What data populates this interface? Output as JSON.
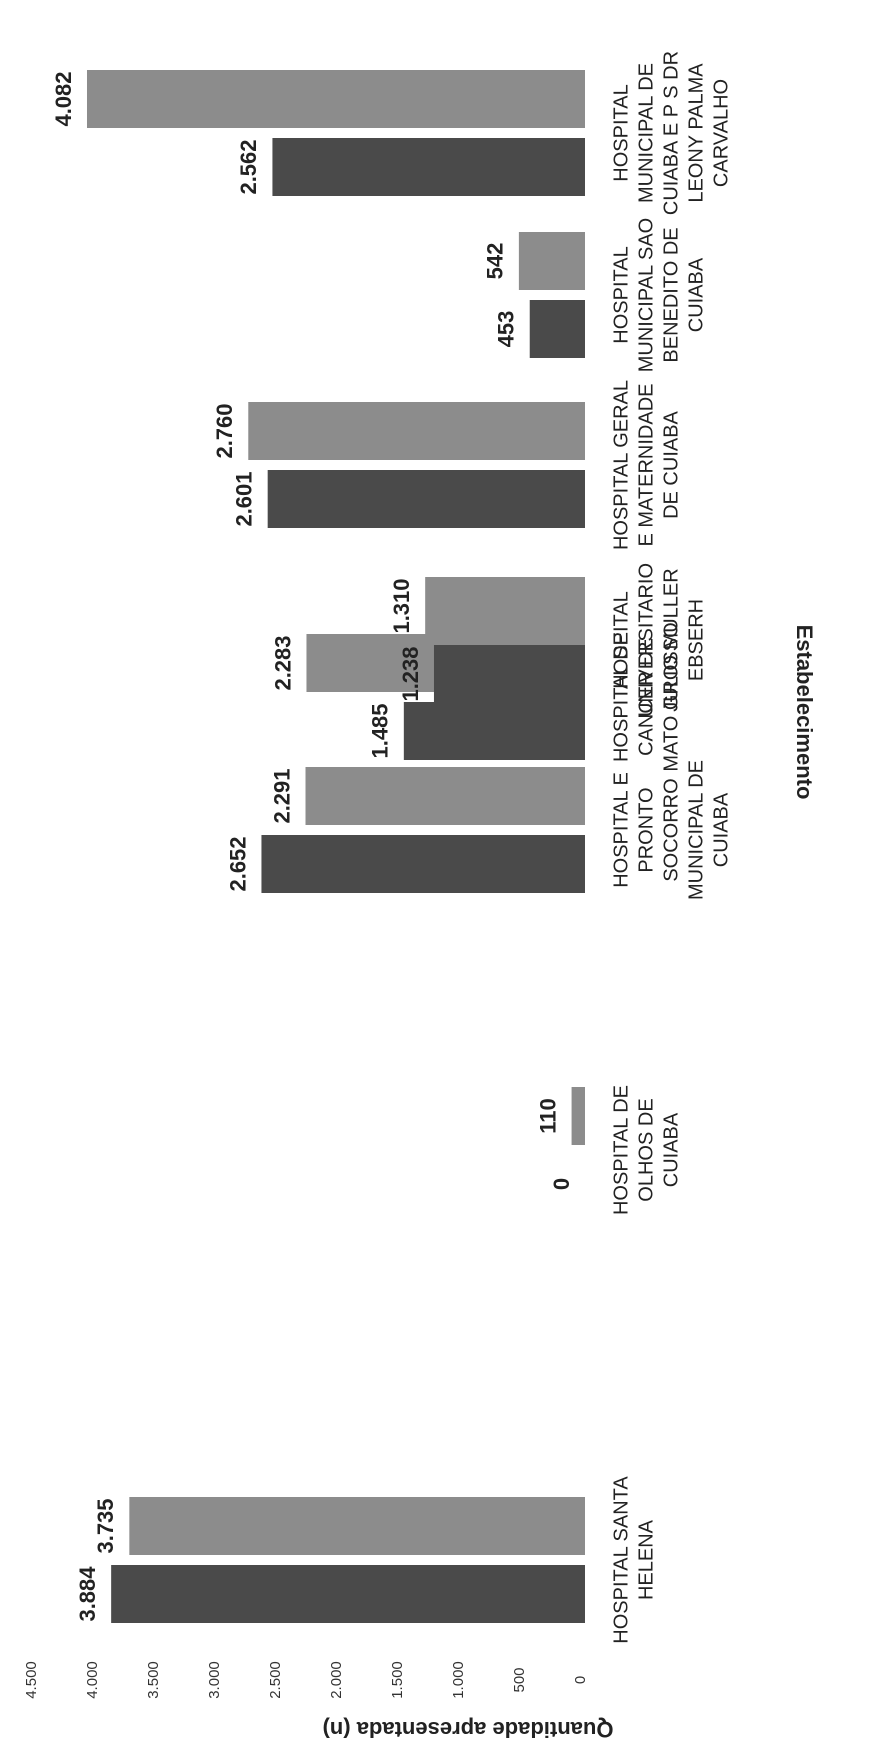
{
  "chart_data": {
    "type": "bar",
    "orientation": "horizontal",
    "rotated": true,
    "categories": [
      [
        "HOSPITAL SANTA",
        "HELENA"
      ],
      [
        "HOSPITAL DE",
        "OLHOS DE",
        "CUIABA"
      ],
      [
        "HOSPITAL E",
        "PRONTO",
        "SOCORRO",
        "MUNICIPAL DE",
        "CUIABA"
      ],
      [
        "HOSPITAL DE",
        "CANCER DE",
        "MATO GROSSO"
      ],
      [
        "HOSPITAL",
        "UNIVERSITARIO",
        "JULIO MULLER",
        "EBSERH"
      ],
      [
        "HOSPITAL GERAL",
        "E MATERNIDADE",
        "DE CUIABA"
      ],
      [
        "HOSPITAL",
        "MUNICIPAL SAO",
        "BENEDITO DE",
        "CUIABA"
      ],
      [
        "HOSPITAL",
        "MUNICIPAL DE",
        "CUIABA E P S DR",
        "LEONY PALMA",
        "CARVALHO"
      ]
    ],
    "series": [
      {
        "values": [
          3884,
          0,
          2652,
          1485,
          1238,
          2601,
          453,
          2562
        ],
        "labels": [
          "3.884",
          "0",
          "2.652",
          "1.485",
          "1.238",
          "2.601",
          "453",
          "2.562"
        ],
        "color": "#4a4a4a"
      },
      {
        "values": [
          3735,
          110,
          2291,
          2283,
          1310,
          2760,
          542,
          4082
        ],
        "labels": [
          "3.735",
          "110",
          "2.291",
          "2.283",
          "1.310",
          "2.760",
          "542",
          "4.082"
        ],
        "color": "#8c8c8c"
      }
    ],
    "ticks": [
      {
        "value": 0,
        "label": "0"
      },
      {
        "value": 500,
        "label": "500"
      },
      {
        "value": 1000,
        "label": "1.000"
      },
      {
        "value": 1500,
        "label": "1.500"
      },
      {
        "value": 2000,
        "label": "2.000"
      },
      {
        "value": 2500,
        "label": "2.500"
      },
      {
        "value": 3000,
        "label": "3.000"
      },
      {
        "value": 3500,
        "label": "3.500"
      },
      {
        "value": 4000,
        "label": "4.000"
      },
      {
        "value": 4500,
        "label": "4.500"
      }
    ],
    "value_axis_range": [
      0,
      4500
    ],
    "value_axis_label": "Quantidade apresentada (n)",
    "category_axis_label": "Estabelecimento",
    "grid": false,
    "legend": "none"
  }
}
